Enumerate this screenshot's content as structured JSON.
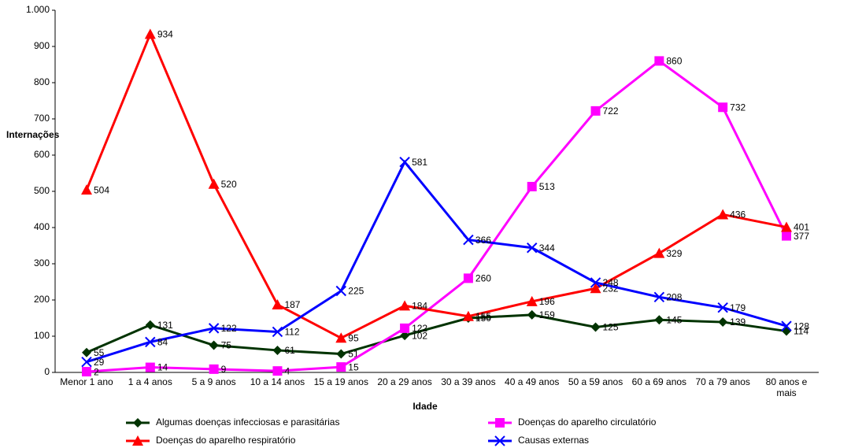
{
  "chart_data": {
    "type": "line",
    "y_label": "Internações",
    "x_label": "Idade",
    "categories": [
      "Menor 1 ano",
      "1 a 4 anos",
      "5 a 9 anos",
      "10 a 14 anos",
      "15 a 19 anos",
      "20 a 29 anos",
      "30 a 39 anos",
      "40 a 49 anos",
      "50 a 59 anos",
      "60 a 69 anos",
      "70 a 79 anos",
      "80 anos e mais"
    ],
    "ylim": [
      0,
      1000
    ],
    "yticks": [
      0,
      100,
      200,
      300,
      400,
      500,
      600,
      700,
      800,
      900,
      {
        "value": 1000,
        "label": "1.000"
      }
    ],
    "series": [
      {
        "name": "Algumas doenças infecciosas e parasitárias",
        "color": "#003300",
        "marker": "diamond",
        "values": [
          55,
          131,
          75,
          61,
          51,
          102,
          150,
          159,
          125,
          145,
          139,
          114
        ]
      },
      {
        "name": "Doenças do aparelho circulatório",
        "color": "#ff00ff",
        "marker": "square",
        "values": [
          2,
          14,
          9,
          4,
          15,
          122,
          260,
          513,
          722,
          860,
          732,
          377
        ]
      },
      {
        "name": "Doenças do aparelho respiratório",
        "color": "#ff0000",
        "marker": "triangle",
        "values": [
          504,
          934,
          520,
          187,
          95,
          184,
          155,
          196,
          232,
          329,
          436,
          401
        ]
      },
      {
        "name": "Causas externas",
        "color": "#0000ff",
        "marker": "x",
        "values": [
          29,
          84,
          122,
          112,
          225,
          581,
          366,
          344,
          248,
          208,
          179,
          128
        ]
      }
    ]
  }
}
